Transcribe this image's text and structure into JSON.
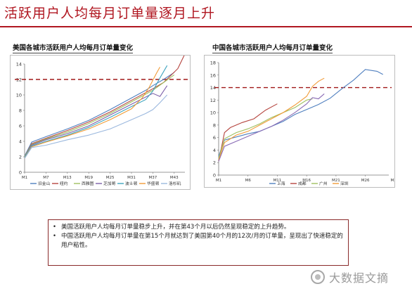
{
  "page": {
    "title": "活跃用户人均每月订单量逐月上升",
    "notes": [
      "美国活跃用户人均每月订单量稳步上升，并在第43个月以后仍然呈现稳定的上升趋势。",
      "中国活跃用户人均每月订单量在第15个月就达到了美国第40个月的12次/月的订单量，呈现出了快速稳定的用户粘性。"
    ],
    "watermark": "大数据文摘"
  },
  "chart_data": [
    {
      "type": "line",
      "title": "美国各城市活跃用户人均每月订单量变化",
      "yticks": [
        0,
        2,
        4,
        6,
        8,
        10,
        12,
        14
      ],
      "ylim": [
        0,
        14
      ],
      "xticks": [
        "M1",
        "M7",
        "M13",
        "M19",
        "M25",
        "M31",
        "M37",
        "M43"
      ],
      "reference_line": {
        "y": 12,
        "style": "dashed",
        "color": "#a01818"
      },
      "legend_position": "bottom",
      "series": [
        {
          "name": "旧金山",
          "color": "#4f7fbf",
          "points": [
            [
              1,
              2.1
            ],
            [
              3,
              3.9
            ],
            [
              7,
              4.6
            ],
            [
              13,
              5.6
            ],
            [
              19,
              6.7
            ],
            [
              25,
              8.1
            ],
            [
              31,
              9.6
            ],
            [
              35,
              10.6
            ],
            [
              37,
              11.2
            ],
            [
              40,
              12.0
            ],
            [
              43,
              12.9
            ]
          ]
        },
        {
          "name": "纽约",
          "color": "#b5453f",
          "points": [
            [
              1,
              2.0
            ],
            [
              3,
              3.7
            ],
            [
              7,
              4.4
            ],
            [
              13,
              5.4
            ],
            [
              19,
              6.5
            ],
            [
              25,
              7.8
            ],
            [
              31,
              9.3
            ],
            [
              35,
              10.3
            ],
            [
              37,
              10.8
            ],
            [
              40,
              11.6
            ],
            [
              44,
              13.4
            ],
            [
              46,
              15.3
            ]
          ]
        },
        {
          "name": "西雅图",
          "color": "#9fc05f",
          "points": [
            [
              1,
              2.0
            ],
            [
              3,
              3.6
            ],
            [
              7,
              4.3
            ],
            [
              13,
              5.2
            ],
            [
              19,
              6.3
            ],
            [
              25,
              7.6
            ],
            [
              31,
              9.1
            ],
            [
              37,
              10.6
            ],
            [
              40,
              11.6
            ],
            [
              43,
              12.6
            ]
          ]
        },
        {
          "name": "芝加哥",
          "color": "#7b5fa8",
          "points": [
            [
              1,
              1.9
            ],
            [
              3,
              3.5
            ],
            [
              7,
              4.2
            ],
            [
              13,
              5.0
            ],
            [
              19,
              6.0
            ],
            [
              25,
              7.4
            ],
            [
              31,
              8.8
            ],
            [
              37,
              10.2
            ],
            [
              39,
              9.8
            ],
            [
              41,
              11.2
            ]
          ]
        },
        {
          "name": "波士顿",
          "color": "#3fa4bf",
          "points": [
            [
              1,
              1.9
            ],
            [
              3,
              3.4
            ],
            [
              7,
              4.0
            ],
            [
              13,
              4.8
            ],
            [
              19,
              5.8
            ],
            [
              25,
              7.1
            ],
            [
              31,
              8.5
            ],
            [
              35,
              9.4
            ],
            [
              37,
              10.5
            ],
            [
              39,
              12.2
            ],
            [
              41,
              13.8
            ]
          ]
        },
        {
          "name": "华盛顿",
          "color": "#f19b37",
          "points": [
            [
              1,
              1.8
            ],
            [
              3,
              3.3
            ],
            [
              7,
              3.9
            ],
            [
              13,
              4.7
            ],
            [
              19,
              5.6
            ],
            [
              25,
              6.8
            ],
            [
              31,
              8.2
            ],
            [
              34,
              9.6
            ],
            [
              36,
              11.0
            ],
            [
              38,
              12.8
            ],
            [
              39,
              13.6
            ]
          ]
        },
        {
          "name": "洛杉矶",
          "color": "#9bb8de",
          "points": [
            [
              1,
              1.8
            ],
            [
              3,
              3.2
            ],
            [
              7,
              3.5
            ],
            [
              13,
              4.2
            ],
            [
              19,
              4.8
            ],
            [
              25,
              5.6
            ],
            [
              31,
              6.8
            ],
            [
              35,
              7.6
            ],
            [
              37,
              8.1
            ],
            [
              39,
              9.0
            ],
            [
              41,
              10.0
            ]
          ]
        }
      ]
    },
    {
      "type": "line",
      "title": "中国各城市活跃用户人均每月订单量变化",
      "yticks": [
        0,
        2,
        4,
        6,
        8,
        10,
        12,
        14,
        16,
        18
      ],
      "ylim": [
        0,
        18
      ],
      "xticks": [
        "M1",
        "M6",
        "M11",
        "M16",
        "M21",
        "M26",
        "M31",
        "M36",
        "M41",
        "M46",
        "M51"
      ],
      "xticks_visible": [
        "M1",
        "M6",
        "M11",
        "M16",
        "M21",
        "M26",
        "M31",
        "M36",
        "M41",
        "M46",
        "M51"
      ],
      "reference_line": {
        "y": 14,
        "style": "dashed",
        "color": "#a01818"
      },
      "legend_position": "bottom",
      "series": [
        {
          "name": "上海",
          "color": "#4f7fbf",
          "points": [
            [
              1,
              3.0
            ],
            [
              2,
              5.6
            ],
            [
              4,
              6.1
            ],
            [
              6,
              6.6
            ],
            [
              8,
              7.0
            ],
            [
              10,
              7.8
            ],
            [
              12,
              8.6
            ],
            [
              14,
              9.7
            ],
            [
              16,
              10.5
            ],
            [
              18,
              11.3
            ],
            [
              20,
              12.3
            ],
            [
              22,
              13.8
            ],
            [
              24,
              15.2
            ],
            [
              26,
              16.9
            ],
            [
              28,
              16.6
            ],
            [
              29,
              16.1
            ]
          ]
        },
        {
          "name": "成都",
          "color": "#b5453f",
          "points": [
            [
              1,
              2.2
            ],
            [
              2,
              6.8
            ],
            [
              3,
              7.6
            ],
            [
              5,
              8.4
            ],
            [
              7,
              9.0
            ],
            [
              9,
              10.4
            ],
            [
              11,
              11.4
            ]
          ]
        },
        {
          "name": "广州",
          "color": "#9fc05f",
          "points": [
            [
              1,
              2.6
            ],
            [
              2,
              5.8
            ],
            [
              4,
              6.8
            ],
            [
              6,
              7.4
            ],
            [
              8,
              8.2
            ],
            [
              10,
              9.2
            ],
            [
              12,
              10.0
            ],
            [
              14,
              10.8
            ],
            [
              16,
              12.0
            ],
            [
              17,
              12.2
            ]
          ]
        },
        {
          "name": "深圳",
          "color": "#f19b37",
          "points": [
            [
              1,
              2.4
            ],
            [
              2,
              5.2
            ],
            [
              4,
              6.4
            ],
            [
              6,
              7.0
            ],
            [
              8,
              8.0
            ],
            [
              10,
              9.0
            ],
            [
              12,
              10.0
            ],
            [
              14,
              11.2
            ],
            [
              16,
              12.6
            ],
            [
              17,
              14.2
            ],
            [
              18,
              15.0
            ],
            [
              19,
              15.5
            ]
          ]
        },
        {
          "name": "",
          "color": "#8a6bb5",
          "points": [
            [
              1,
              2.2
            ],
            [
              2,
              4.6
            ],
            [
              4,
              5.4
            ],
            [
              6,
              6.2
            ],
            [
              8,
              7.0
            ],
            [
              10,
              7.8
            ],
            [
              12,
              8.8
            ],
            [
              14,
              10.0
            ],
            [
              16,
              11.4
            ],
            [
              17,
              12.4
            ],
            [
              18,
              12.2
            ],
            [
              19,
              13.0
            ]
          ]
        }
      ]
    }
  ]
}
